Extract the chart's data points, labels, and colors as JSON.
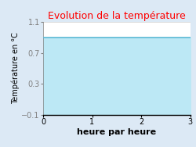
{
  "title": "Evolution de la température",
  "xlabel": "heure par heure",
  "ylabel": "Température en °C",
  "xlim": [
    0,
    3
  ],
  "ylim": [
    -0.1,
    1.1
  ],
  "yticks": [
    -0.1,
    0.3,
    0.7,
    1.1
  ],
  "xticks": [
    0,
    1,
    2,
    3
  ],
  "line_y": 0.9,
  "line_color": "#5bb8d4",
  "fill_color": "#bce8f5",
  "background_color": "#dce9f5",
  "plot_bg_color": "#ffffff",
  "title_color": "#ff0000",
  "title_fontsize": 9,
  "xlabel_fontsize": 8,
  "ylabel_fontsize": 7,
  "tick_fontsize": 7
}
